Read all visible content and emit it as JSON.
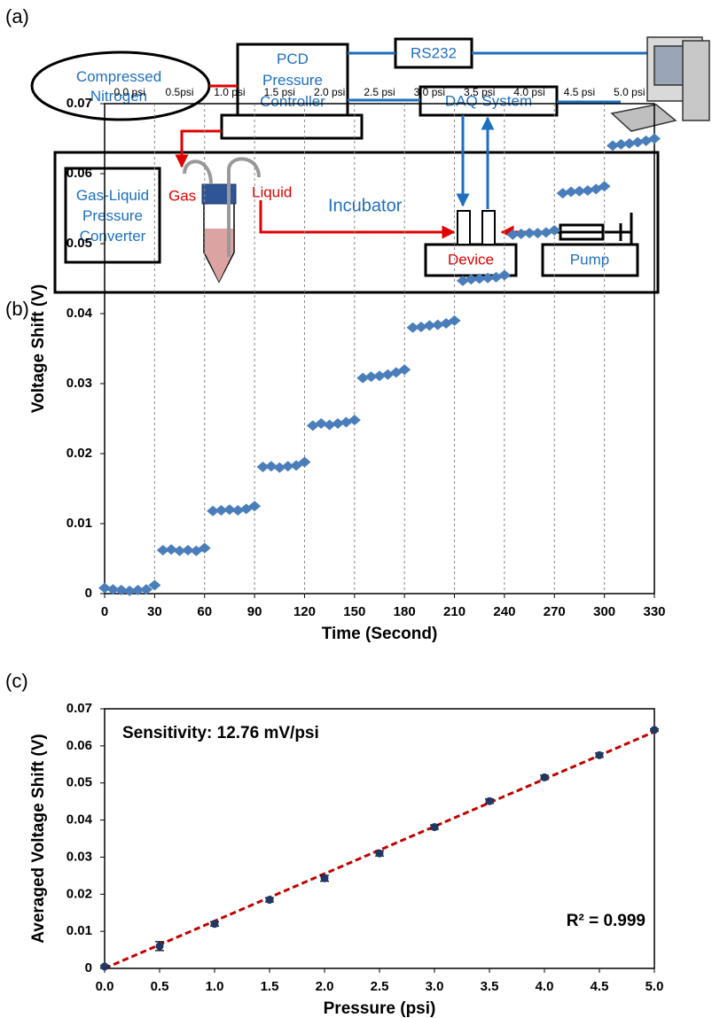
{
  "diagram": {
    "panel_label": "(a)",
    "nitrogen": {
      "lines": [
        "Compressed",
        "Nitrogen"
      ]
    },
    "controller": {
      "lines": [
        "PCD",
        "Pressure",
        "Controller"
      ]
    },
    "rs232": "RS232",
    "daq": "DAQ System",
    "converter": {
      "lines": [
        "Gas-Liquid",
        "Pressure",
        "Converter"
      ]
    },
    "gas": "Gas",
    "liquid": "Liquid",
    "incubator": "Incubator",
    "device": "Device",
    "pump": "Pump"
  },
  "chart_data": [
    {
      "type": "scatter",
      "panel_label": "(b)",
      "x_label": "Time (Second)",
      "y_label": "Voltage Shift (V)",
      "interval_labels": [
        "0.0 psi",
        "0.5psi",
        "1.0 psi",
        "1.5 psi",
        "2.0 psi",
        "2.5 psi",
        "3.0 psi",
        "3.5 psi",
        "4.0 psi",
        "4.5 psi",
        "5.0 psi"
      ],
      "x": [
        0,
        5,
        10,
        15,
        20,
        25,
        30,
        35,
        40,
        45,
        50,
        55,
        60,
        65,
        70,
        75,
        80,
        85,
        90,
        95,
        100,
        105,
        110,
        115,
        120,
        125,
        130,
        135,
        140,
        145,
        150,
        155,
        160,
        165,
        170,
        175,
        180,
        185,
        190,
        195,
        200,
        205,
        210,
        215,
        220,
        225,
        230,
        235,
        240,
        245,
        250,
        255,
        260,
        265,
        270,
        275,
        280,
        285,
        290,
        295,
        300,
        305,
        310,
        315,
        320,
        325,
        330
      ],
      "values": [
        0.0008,
        0.0006,
        0.0005,
        0.0004,
        0.0005,
        0.0006,
        0.0012,
        0.0062,
        0.0063,
        0.0061,
        0.0062,
        0.0061,
        0.0065,
        0.0118,
        0.0119,
        0.012,
        0.0119,
        0.0121,
        0.0125,
        0.0181,
        0.0182,
        0.018,
        0.0182,
        0.0183,
        0.0188,
        0.024,
        0.0243,
        0.0241,
        0.0243,
        0.0245,
        0.0248,
        0.0308,
        0.031,
        0.0311,
        0.0313,
        0.0316,
        0.032,
        0.038,
        0.0381,
        0.0383,
        0.0384,
        0.0386,
        0.039,
        0.0447,
        0.0449,
        0.045,
        0.0451,
        0.0452,
        0.0455,
        0.0513,
        0.0514,
        0.0515,
        0.0515,
        0.0516,
        0.0519,
        0.0572,
        0.0574,
        0.0575,
        0.0576,
        0.0578,
        0.0582,
        0.064,
        0.0642,
        0.0643,
        0.0645,
        0.0647,
        0.065
      ],
      "color": "#4a7ebb",
      "marker": "diamond",
      "xlim": [
        0,
        330
      ],
      "xticks": [
        0,
        30,
        60,
        90,
        120,
        150,
        180,
        210,
        240,
        270,
        300,
        330
      ],
      "ylim": [
        0,
        0.07
      ],
      "yticks": [
        0,
        0.01,
        0.02,
        0.03,
        0.04,
        0.05,
        0.06,
        0.07
      ],
      "grid": "x"
    },
    {
      "type": "scatter",
      "panel_label": "(c)",
      "x_label": "Pressure (psi)",
      "y_label": "Averaged Voltage Shift (V)",
      "x": [
        0,
        0.5,
        1,
        1.5,
        2,
        2.5,
        3,
        3.5,
        4,
        4.5,
        5
      ],
      "values": [
        0.0005,
        0.006,
        0.012,
        0.0185,
        0.0243,
        0.031,
        0.0381,
        0.0451,
        0.0515,
        0.0575,
        0.0643
      ],
      "errors": [
        0.0003,
        0.0012,
        0.0006,
        0.0006,
        0.0008,
        0.0007,
        0.0006,
        0.0006,
        0.0006,
        0.0006,
        0.0003
      ],
      "color": "#1f3864",
      "marker": "circle",
      "fit": {
        "color": "#c00000",
        "x": [
          0,
          5
        ],
        "values": [
          0,
          0.0638
        ]
      },
      "annotations": [
        "Sensitivity: 12.76 mV/psi",
        "R² = 0.999"
      ],
      "xlim": [
        0,
        5
      ],
      "xticks": [
        {
          "value": 0,
          "label": "0.0"
        },
        0.5,
        {
          "value": 1,
          "label": "1.0"
        },
        1.5,
        {
          "value": 2,
          "label": "2.0"
        },
        2.5,
        {
          "value": 3,
          "label": "3.0"
        },
        3.5,
        {
          "value": 4,
          "label": "4.0"
        },
        4.5,
        {
          "value": 5,
          "label": "5.0"
        }
      ],
      "ylim": [
        0,
        0.07
      ],
      "yticks": [
        0,
        0.01,
        0.02,
        0.03,
        0.04,
        0.05,
        0.06,
        0.07
      ],
      "grid": "none"
    }
  ]
}
